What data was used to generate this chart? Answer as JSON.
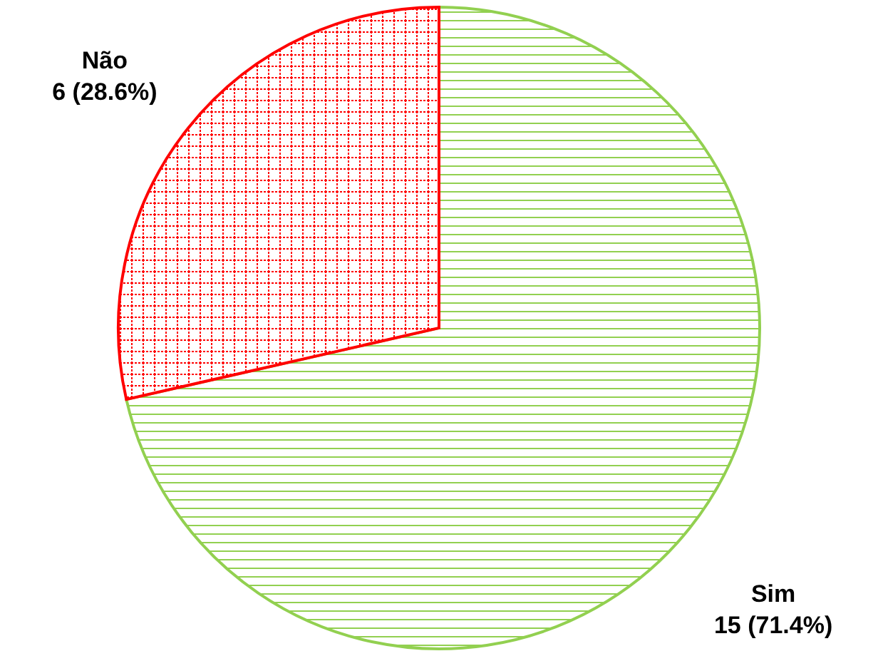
{
  "chart_data": {
    "type": "pie",
    "categories": [
      "Sim",
      "Não"
    ],
    "values": [
      15,
      6
    ],
    "value_labels": [
      "15 (71.4%)",
      "6 (28.6%)"
    ],
    "colors": [
      "#92d050",
      "#ff0000"
    ]
  }
}
